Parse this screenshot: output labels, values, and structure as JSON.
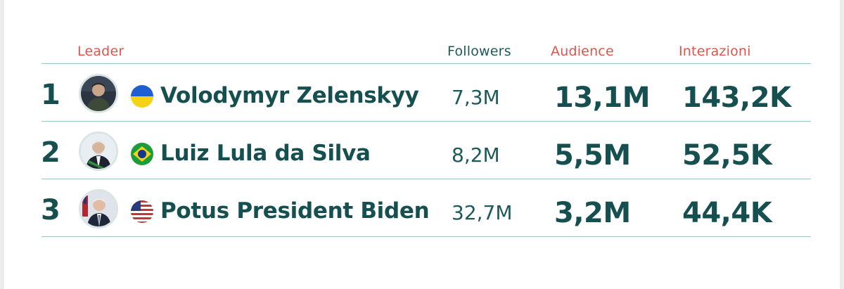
{
  "header": {
    "leader": "Leader",
    "followers": "Followers",
    "audience": "Audience",
    "interactions": "Interazioni"
  },
  "colors": {
    "accent_red": "#e0544b",
    "teal": "#164f50",
    "rule": "#9ec4c4"
  },
  "rows": [
    {
      "rank": "1",
      "avatar": "leader-portrait-icon",
      "flag": "ukraine-flag-icon",
      "name": "Volodymyr Zelenskyy",
      "followers": "7,3M",
      "audience": "13,1M",
      "interactions": "143,2K"
    },
    {
      "rank": "2",
      "avatar": "leader-portrait-icon",
      "flag": "brazil-flag-icon",
      "name": "Luiz Lula da Silva",
      "followers": "8,2M",
      "audience": "5,5M",
      "interactions": "52,5K"
    },
    {
      "rank": "3",
      "avatar": "leader-portrait-icon",
      "flag": "usa-flag-icon",
      "name": "Potus President Biden",
      "followers": "32,7M",
      "audience": "3,2M",
      "interactions": "44,4K"
    }
  ]
}
